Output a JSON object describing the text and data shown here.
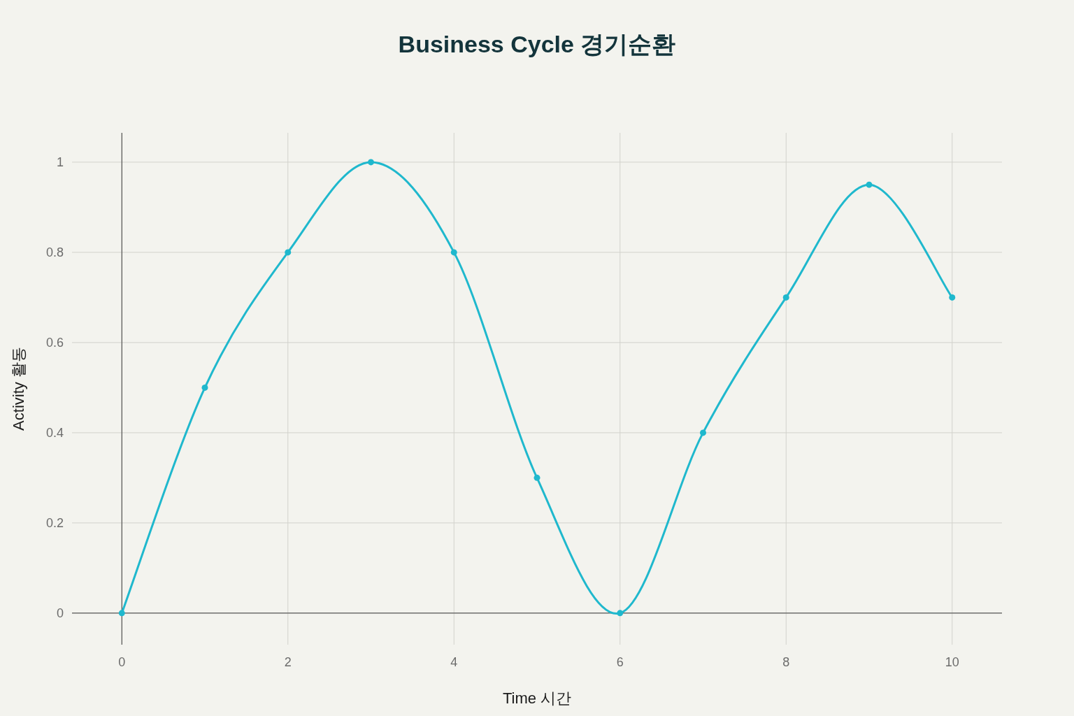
{
  "chart_data": {
    "type": "line",
    "title": "Business Cycle 경기순환",
    "xlabel": "Time 시간",
    "ylabel": "Activity 활동",
    "x": [
      0,
      1,
      2,
      3,
      4,
      5,
      6,
      7,
      8,
      9,
      10
    ],
    "series": [
      {
        "color": "#1fb8cd",
        "values": [
          0,
          0.5,
          0.8,
          1,
          0.8,
          0.3,
          0,
          0.4,
          0.7,
          0.95,
          0.7
        ]
      }
    ],
    "xlim": [
      -0.6,
      10.6
    ],
    "ylim": [
      -0.07,
      1.065
    ],
    "xticks": [
      0,
      2,
      4,
      6,
      8,
      10
    ],
    "yticks": [
      0,
      0.2,
      0.4,
      0.6,
      0.8,
      1
    ],
    "grid": true,
    "marker": "circle",
    "line_style": "solid"
  }
}
